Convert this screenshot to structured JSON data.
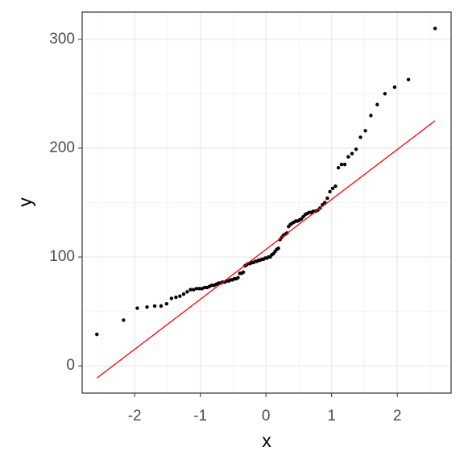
{
  "chart_data": {
    "type": "scatter",
    "x_label": "x",
    "y_label": "y",
    "x": [
      -2.576,
      -2.17,
      -1.96,
      -1.812,
      -1.695,
      -1.598,
      -1.514,
      -1.44,
      -1.372,
      -1.311,
      -1.254,
      -1.2,
      -1.15,
      -1.103,
      -1.058,
      -1.015,
      -0.974,
      -0.935,
      -0.896,
      -0.86,
      -0.824,
      -0.789,
      -0.755,
      -0.722,
      -0.69,
      -0.659,
      -0.628,
      -0.598,
      -0.568,
      -0.539,
      -0.51,
      -0.482,
      -0.454,
      -0.426,
      -0.399,
      -0.372,
      -0.345,
      -0.319,
      -0.292,
      -0.266,
      -0.24,
      -0.215,
      -0.189,
      -0.164,
      -0.138,
      -0.113,
      -0.088,
      -0.063,
      -0.038,
      -0.013,
      0.013,
      0.038,
      0.063,
      0.088,
      0.113,
      0.138,
      0.164,
      0.189,
      0.215,
      0.24,
      0.266,
      0.292,
      0.319,
      0.345,
      0.372,
      0.399,
      0.426,
      0.454,
      0.482,
      0.51,
      0.539,
      0.568,
      0.598,
      0.628,
      0.659,
      0.69,
      0.722,
      0.755,
      0.789,
      0.824,
      0.86,
      0.896,
      0.935,
      0.974,
      1.015,
      1.058,
      1.103,
      1.15,
      1.2,
      1.254,
      1.311,
      1.372,
      1.44,
      1.514,
      1.598,
      1.695,
      1.812,
      1.96,
      2.17,
      2.576
    ],
    "y": [
      29,
      42,
      53,
      54,
      55,
      55,
      57,
      62,
      63,
      64,
      66,
      68,
      70,
      70,
      71,
      71,
      71,
      72,
      72,
      73,
      74,
      74,
      75,
      76,
      76,
      77,
      77,
      78,
      78,
      79,
      79,
      80,
      80,
      81,
      85,
      85,
      86,
      92,
      93,
      94,
      94,
      95,
      95,
      96,
      96,
      97,
      97,
      98,
      98,
      99,
      99,
      100,
      100,
      102,
      103,
      105,
      107,
      108,
      116,
      118,
      120,
      121,
      122,
      128,
      130,
      131,
      132,
      133,
      133,
      134,
      135,
      137,
      139,
      140,
      141,
      141,
      142,
      142,
      143,
      145,
      148,
      150,
      154,
      160,
      163,
      165,
      182,
      185,
      185,
      192,
      195,
      199,
      210,
      216,
      230,
      240,
      250,
      256,
      263,
      310
    ],
    "point_color": "#000000",
    "reference_line": {
      "x": [
        -2.576,
        2.576
      ],
      "y": [
        -11.2,
        225.2
      ],
      "color": "#ff0000"
    },
    "xlim": [
      -2.8,
      2.82
    ],
    "ylim": [
      -25,
      325
    ],
    "xticks": [
      -2,
      -1,
      0,
      1,
      2
    ],
    "yticks": [
      0,
      100,
      200,
      300
    ],
    "grid": true
  }
}
